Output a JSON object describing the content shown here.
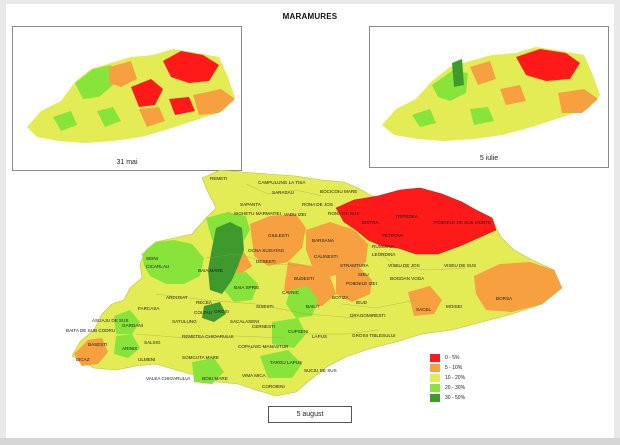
{
  "title": "MARAMURES",
  "mini_maps": [
    {
      "label": "31 mai"
    },
    {
      "label": "5 iulie"
    }
  ],
  "main_map": {
    "date_label": "5 august"
  },
  "legend": [
    {
      "label": "0 - 5%",
      "color": "#ff1a1a"
    },
    {
      "label": "5 - 10%",
      "color": "#f7a040"
    },
    {
      "label": "10 - 20%",
      "color": "#e3ec55"
    },
    {
      "label": "20 - 30%",
      "color": "#88e43a"
    },
    {
      "label": "30 - 50%",
      "color": "#3f9a2e"
    }
  ],
  "municipalities": [
    {
      "name": "REMETI",
      "class": "10 - 20%"
    },
    {
      "name": "CAMPULUNG LA TISA",
      "class": "10 - 20%"
    },
    {
      "name": "SARASAU",
      "class": "10 - 20%"
    },
    {
      "name": "BOCICOIU MARE",
      "class": "10 - 20%"
    },
    {
      "name": "SAPANTA",
      "class": "10 - 20%"
    },
    {
      "name": "SIGHETU MARMATIEI",
      "class": "10 - 20%"
    },
    {
      "name": "VADU IZEI",
      "class": "20 - 30%"
    },
    {
      "name": "RONA DE JOS",
      "class": "10 - 20%"
    },
    {
      "name": "RONA DE SUS",
      "class": "0 - 5%"
    },
    {
      "name": "BISTRA",
      "class": "0 - 5%"
    },
    {
      "name": "REPEDEA",
      "class": "0 - 5%"
    },
    {
      "name": "POIENILE DE SUB MUNTE",
      "class": "0 - 5%"
    },
    {
      "name": "GIULESTI",
      "class": "5 - 10%"
    },
    {
      "name": "OCNA SUGATAG",
      "class": "5 - 10%"
    },
    {
      "name": "DESESTI",
      "class": "5 - 10%"
    },
    {
      "name": "BARSANA",
      "class": "5 - 10%"
    },
    {
      "name": "PETROVA",
      "class": "0 - 5%"
    },
    {
      "name": "CALINESTI",
      "class": "5 - 10%"
    },
    {
      "name": "RUSCOVA",
      "class": "0 - 5%"
    },
    {
      "name": "LEORDINA",
      "class": "0 - 5%"
    },
    {
      "name": "SEINI",
      "class": "20 - 30%"
    },
    {
      "name": "CICARLAU",
      "class": "20 - 30%"
    },
    {
      "name": "BAIA MARE",
      "class": "30 - 50%"
    },
    {
      "name": "STRAMTURA",
      "class": "5 - 10%"
    },
    {
      "name": "SIEU",
      "class": "5 - 10%"
    },
    {
      "name": "VISEU DE JOS",
      "class": "10 - 20%"
    },
    {
      "name": "VISEU DE SUS",
      "class": "10 - 20%"
    },
    {
      "name": "BUDESTI",
      "class": "5 - 10%"
    },
    {
      "name": "POIENILE IZEI",
      "class": "5 - 10%"
    },
    {
      "name": "BOGDAN VODA",
      "class": "10 - 20%"
    },
    {
      "name": "BAIA SPRIE",
      "class": "20 - 30%"
    },
    {
      "name": "CAVNIC",
      "class": "10 - 20%"
    },
    {
      "name": "BOTIZA",
      "class": "5 - 10%"
    },
    {
      "name": "ARDUSAT",
      "class": "10 - 20%"
    },
    {
      "name": "RECEA",
      "class": "20 - 30%"
    },
    {
      "name": "SISESTI",
      "class": "10 - 20%"
    },
    {
      "name": "BAIUT",
      "class": "20 - 30%"
    },
    {
      "name": "IEUD",
      "class": "10 - 20%"
    },
    {
      "name": "SACEL",
      "class": "5 - 10%"
    },
    {
      "name": "MOISEI",
      "class": "10 - 20%"
    },
    {
      "name": "BORSA",
      "class": "5 - 10%"
    },
    {
      "name": "FARCASA",
      "class": "10 - 20%"
    },
    {
      "name": "COLTAU",
      "class": "20 - 30%"
    },
    {
      "name": "GROSI",
      "class": "30 - 50%"
    },
    {
      "name": "SATULUNG",
      "class": "10 - 20%"
    },
    {
      "name": "SACALASENI",
      "class": "10 - 20%"
    },
    {
      "name": "DRAGOMIRESTI",
      "class": "10 - 20%"
    },
    {
      "name": "ASUAJU DE SUS",
      "class": "10 - 20%"
    },
    {
      "name": "GARDANI",
      "class": "20 - 30%"
    },
    {
      "name": "BAITA DE SUB CODRU",
      "class": "10 - 20%"
    },
    {
      "name": "CERNESTI",
      "class": "10 - 20%"
    },
    {
      "name": "REMETEA CHIOARULUI",
      "class": "10 - 20%"
    },
    {
      "name": "CUPSENI",
      "class": "20 - 30%"
    },
    {
      "name": "LAPUS",
      "class": "10 - 20%"
    },
    {
      "name": "GROSII TIBLESULUI",
      "class": "10 - 20%"
    },
    {
      "name": "BASESTI",
      "class": "10 - 20%"
    },
    {
      "name": "SALSIG",
      "class": "10 - 20%"
    },
    {
      "name": "ARINIS",
      "class": "20 - 30%"
    },
    {
      "name": "COPALNIC-MANASTUR",
      "class": "10 - 20%"
    },
    {
      "name": "BICAZ",
      "class": "5 - 10%"
    },
    {
      "name": "ULMENI",
      "class": "10 - 20%"
    },
    {
      "name": "SOMCUTA MARE",
      "class": "10 - 20%"
    },
    {
      "name": "TARGU LAPUS",
      "class": "20 - 30%"
    },
    {
      "name": "VALEA CHIOARULUI",
      "class": "10 - 20%"
    },
    {
      "name": "BOIU MARE",
      "class": "20 - 30%"
    },
    {
      "name": "VIMA MICA",
      "class": "10 - 20%"
    },
    {
      "name": "SUCIU DE SUS",
      "class": "10 - 20%"
    },
    {
      "name": "COROIENI",
      "class": "10 - 20%"
    }
  ]
}
